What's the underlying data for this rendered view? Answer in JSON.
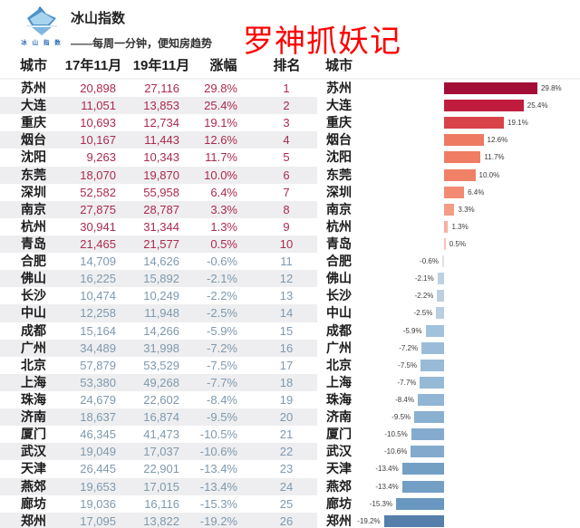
{
  "brand": {
    "title": "冰山指数",
    "subtitle": "——每周一分钟，便知房趋势",
    "logo_text": "冰 山 指 数"
  },
  "headline": {
    "text": "罗神抓妖记",
    "color": "#fe0000"
  },
  "table": {
    "headers": {
      "city": "城市",
      "y2017": "17年11月",
      "y2019": "19年11月",
      "change": "涨幅",
      "rank": "排名",
      "city2": "城市"
    },
    "rows": [
      {
        "city": "苏州",
        "v2017": "20,898",
        "v2019": "27,116",
        "change": "29.8%",
        "rank": "1",
        "pct": 29.8,
        "bar_color": "#a30e36"
      },
      {
        "city": "大连",
        "v2017": "11,051",
        "v2019": "13,853",
        "change": "25.4%",
        "rank": "2",
        "pct": 25.4,
        "bar_color": "#c01d3e"
      },
      {
        "city": "重庆",
        "v2017": "10,693",
        "v2019": "12,734",
        "change": "19.1%",
        "rank": "3",
        "pct": 19.1,
        "bar_color": "#d8434a"
      },
      {
        "city": "烟台",
        "v2017": "10,167",
        "v2019": "11,443",
        "change": "12.6%",
        "rank": "4",
        "pct": 12.6,
        "bar_color": "#ee7a62"
      },
      {
        "city": "沈阳",
        "v2017": "9,263",
        "v2019": "10,343",
        "change": "11.7%",
        "rank": "5",
        "pct": 11.7,
        "bar_color": "#ef7d64"
      },
      {
        "city": "东莞",
        "v2017": "18,070",
        "v2019": "19,870",
        "change": "10.0%",
        "rank": "6",
        "pct": 10.0,
        "bar_color": "#f08167"
      },
      {
        "city": "深圳",
        "v2017": "52,582",
        "v2019": "55,958",
        "change": "6.4%",
        "rank": "7",
        "pct": 6.4,
        "bar_color": "#f28b72"
      },
      {
        "city": "南京",
        "v2017": "27,875",
        "v2019": "28,787",
        "change": "3.3%",
        "rank": "8",
        "pct": 3.3,
        "bar_color": "#f49c86"
      },
      {
        "city": "杭州",
        "v2017": "30,941",
        "v2019": "31,344",
        "change": "1.3%",
        "rank": "9",
        "pct": 1.3,
        "bar_color": "#f6b0a0"
      },
      {
        "city": "青岛",
        "v2017": "21,465",
        "v2019": "21,577",
        "change": "0.5%",
        "rank": "10",
        "pct": 0.5,
        "bar_color": "#f8c3b8"
      },
      {
        "city": "合肥",
        "v2017": "14,709",
        "v2019": "14,626",
        "change": "-0.6%",
        "rank": "11",
        "pct": -0.6,
        "bar_color": "#dde2e6"
      },
      {
        "city": "佛山",
        "v2017": "16,225",
        "v2019": "15,892",
        "change": "-2.1%",
        "rank": "12",
        "pct": -2.1,
        "bar_color": "#bed1e3"
      },
      {
        "city": "长沙",
        "v2017": "10,474",
        "v2019": "10,249",
        "change": "-2.2%",
        "rank": "13",
        "pct": -2.2,
        "bar_color": "#bcd0e2"
      },
      {
        "city": "中山",
        "v2017": "12,258",
        "v2019": "11,948",
        "change": "-2.5%",
        "rank": "14",
        "pct": -2.5,
        "bar_color": "#b9cee1"
      },
      {
        "city": "成都",
        "v2017": "15,164",
        "v2019": "14,266",
        "change": "-5.9%",
        "rank": "15",
        "pct": -5.9,
        "bar_color": "#a2c1db"
      },
      {
        "city": "广州",
        "v2017": "34,489",
        "v2019": "31,998",
        "change": "-7.2%",
        "rank": "16",
        "pct": -7.2,
        "bar_color": "#9abcd8"
      },
      {
        "city": "北京",
        "v2017": "57,879",
        "v2019": "53,529",
        "change": "-7.5%",
        "rank": "17",
        "pct": -7.5,
        "bar_color": "#98bad7"
      },
      {
        "city": "上海",
        "v2017": "53,380",
        "v2019": "49,268",
        "change": "-7.7%",
        "rank": "18",
        "pct": -7.7,
        "bar_color": "#96b9d6"
      },
      {
        "city": "珠海",
        "v2017": "24,679",
        "v2019": "22,602",
        "change": "-8.4%",
        "rank": "19",
        "pct": -8.4,
        "bar_color": "#91b5d4"
      },
      {
        "city": "济南",
        "v2017": "18,637",
        "v2019": "16,874",
        "change": "-9.5%",
        "rank": "20",
        "pct": -9.5,
        "bar_color": "#8ab0d1"
      },
      {
        "city": "厦门",
        "v2017": "46,345",
        "v2019": "41,473",
        "change": "-10.5%",
        "rank": "21",
        "pct": -10.5,
        "bar_color": "#84abce"
      },
      {
        "city": "武汉",
        "v2017": "19,049",
        "v2019": "17,037",
        "change": "-10.6%",
        "rank": "22",
        "pct": -10.6,
        "bar_color": "#83aacd"
      },
      {
        "city": "天津",
        "v2017": "26,445",
        "v2019": "22,901",
        "change": "-13.4%",
        "rank": "23",
        "pct": -13.4,
        "bar_color": "#739fc5"
      },
      {
        "city": "燕郊",
        "v2017": "19,653",
        "v2019": "17,015",
        "change": "-13.4%",
        "rank": "24",
        "pct": -13.4,
        "bar_color": "#739fc5"
      },
      {
        "city": "廊坊",
        "v2017": "19,036",
        "v2019": "16,116",
        "change": "-15.3%",
        "rank": "25",
        "pct": -15.3,
        "bar_color": "#6997bf"
      },
      {
        "city": "郑州",
        "v2017": "17,095",
        "v2019": "13,822",
        "change": "-19.2%",
        "rank": "26",
        "pct": -19.2,
        "bar_color": "#567fab"
      }
    ]
  },
  "colors": {
    "positive_text": "#ad2a4e",
    "negative_text": "#7e99ae",
    "stripe": "#eeeef0",
    "bar_label": "#3c3c3c",
    "logo_blue": "#2b6cb3"
  },
  "chart_data": {
    "type": "bar",
    "orientation": "horizontal",
    "title": "涨幅 (17年11月 → 19年11月)",
    "categories": [
      "苏州",
      "大连",
      "重庆",
      "烟台",
      "沈阳",
      "东莞",
      "深圳",
      "南京",
      "杭州",
      "青岛",
      "合肥",
      "佛山",
      "长沙",
      "中山",
      "成都",
      "广州",
      "北京",
      "上海",
      "珠海",
      "济南",
      "厦门",
      "武汉",
      "天津",
      "燕郊",
      "廊坊",
      "郑州"
    ],
    "values": [
      29.8,
      25.4,
      19.1,
      12.6,
      11.7,
      10.0,
      6.4,
      3.3,
      1.3,
      0.5,
      -0.6,
      -2.1,
      -2.2,
      -2.5,
      -5.9,
      -7.2,
      -7.5,
      -7.7,
      -8.4,
      -9.5,
      -10.5,
      -10.6,
      -13.4,
      -13.4,
      -15.3,
      -19.2
    ],
    "value_labels": [
      "29.8%",
      "25.4%",
      "19.1%",
      "12.6%",
      "11.7%",
      "10.0%",
      "6.4%",
      "3.3%",
      "1.3%",
      "0.5%",
      "-0.6%",
      "-2.1%",
      "-2.2%",
      "-2.5%",
      "-5.9%",
      "-7.2%",
      "-7.5%",
      "-7.7%",
      "-8.4%",
      "-9.5%",
      "-10.5%",
      "-10.6%",
      "-13.4%",
      "-13.4%",
      "-15.3%",
      "-19.2%"
    ],
    "bar_colors": [
      "#a30e36",
      "#c01d3e",
      "#d8434a",
      "#ee7a62",
      "#ef7d64",
      "#f08167",
      "#f28b72",
      "#f49c86",
      "#f6b0a0",
      "#f8c3b8",
      "#dde2e6",
      "#bed1e3",
      "#bcd0e2",
      "#b9cee1",
      "#a2c1db",
      "#9abcd8",
      "#98bad7",
      "#96b9d6",
      "#91b5d4",
      "#8ab0d1",
      "#84abce",
      "#83aacd",
      "#739fc5",
      "#739fc5",
      "#6997bf",
      "#567fab"
    ],
    "baseline": 0,
    "xlim": [
      -22,
      33
    ],
    "grid": false,
    "legend": false,
    "value_labels_shown": true
  }
}
